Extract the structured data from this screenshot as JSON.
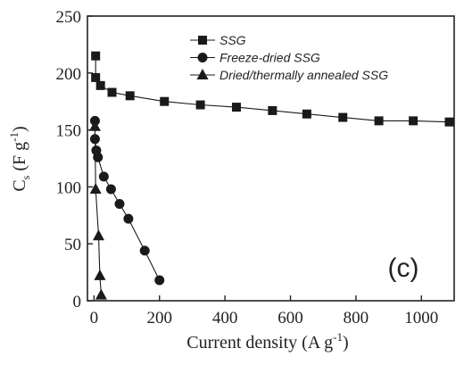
{
  "chart_data": {
    "type": "scatter",
    "xlabel_main": "Current density (A g",
    "xlabel_sup": "-1",
    "xlabel_close": ")",
    "ylabel_main": "C",
    "ylabel_sub": "s",
    "ylabel_unit": " (F g",
    "ylabel_sup": "-1",
    "ylabel_close": ")",
    "panel_label": "(c)",
    "xlim": [
      -20,
      1100
    ],
    "ylim": [
      0,
      250
    ],
    "xticks": [
      0,
      200,
      400,
      600,
      800,
      1000
    ],
    "yticks": [
      0,
      50,
      100,
      150,
      200,
      250
    ],
    "legend_position": "top-right",
    "series": [
      {
        "name": "SSG",
        "marker": "square",
        "color": "#1a1a1a",
        "points": [
          [
            5,
            215
          ],
          [
            5,
            196
          ],
          [
            20,
            189
          ],
          [
            55,
            183
          ],
          [
            110,
            180
          ],
          [
            215,
            175
          ],
          [
            325,
            172
          ],
          [
            435,
            170
          ],
          [
            545,
            167
          ],
          [
            650,
            164
          ],
          [
            760,
            161
          ],
          [
            870,
            158
          ],
          [
            975,
            158
          ],
          [
            1085,
            157
          ]
        ]
      },
      {
        "name": "Freeze-dried SSG",
        "marker": "circle",
        "color": "#1a1a1a",
        "points": [
          [
            3,
            158
          ],
          [
            3,
            142
          ],
          [
            7,
            132
          ],
          [
            12,
            126
          ],
          [
            30,
            109
          ],
          [
            52,
            98
          ],
          [
            78,
            85
          ],
          [
            105,
            72
          ],
          [
            155,
            44
          ],
          [
            200,
            18
          ]
        ]
      },
      {
        "name": "Dried/thermally annealed SSG",
        "marker": "triangle",
        "color": "#1a1a1a",
        "points": [
          [
            3,
            153
          ],
          [
            5,
            98
          ],
          [
            14,
            57
          ],
          [
            18,
            22
          ],
          [
            22,
            5
          ]
        ]
      }
    ]
  }
}
